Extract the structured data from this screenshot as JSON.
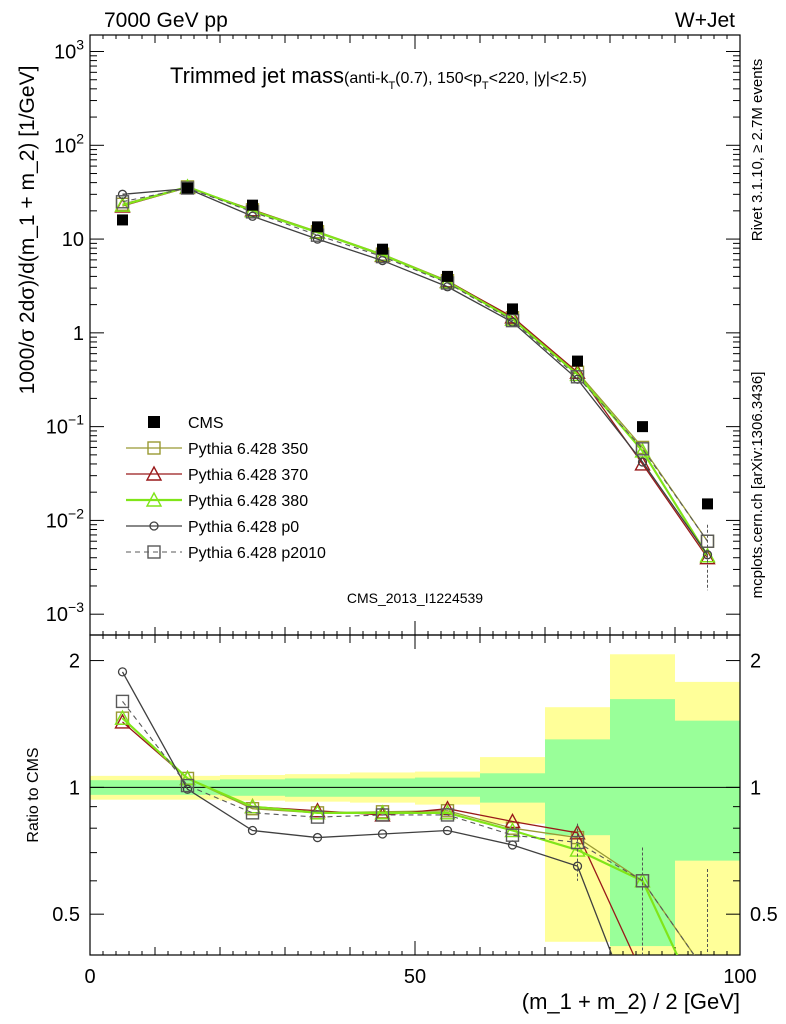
{
  "header": {
    "left": "7000 GeV pp",
    "right": "W+Jet"
  },
  "title": {
    "main": "Trimmed jet mass",
    "sub": "(anti-k",
    "sub_t": "T",
    "sub_mid": "(0.7), 150<p",
    "sub_t2": "T",
    "sub_end": "<220, |y|<2.5)"
  },
  "side_labels": {
    "rivet": "Rivet 3.1.10, ≥ 2.7M events",
    "mcplots": "mcplots.cern.ch [arXiv:1306.3436]"
  },
  "analysis_id": "CMS_2013_I1224539",
  "ylabel_top": "1000/σ 2dσ)/d(m_1 + m_2) [1/GeV]",
  "ylabel_bottom": "Ratio to CMS",
  "xlabel": "(m_1 + m_2) / 2 [GeV]",
  "top_ticks": [
    {
      "v": 1000,
      "base": "10",
      "exp": "3"
    },
    {
      "v": 100,
      "base": "10",
      "exp": "2"
    },
    {
      "v": 10,
      "base": "10",
      "exp": ""
    },
    {
      "v": 1,
      "base": "1",
      "exp": ""
    },
    {
      "v": 0.1,
      "base": "10",
      "exp": "−1"
    },
    {
      "v": 0.01,
      "base": "10",
      "exp": "−2"
    },
    {
      "v": 0.001,
      "base": "10",
      "exp": "−3"
    }
  ],
  "x_ticks": [
    "0",
    "50",
    "100"
  ],
  "ratio_ticks": [
    "0.5",
    "1",
    "2"
  ],
  "colors": {
    "s350": "#999933",
    "s370": "#99191a",
    "s380": "#80e519",
    "p0": "#404040",
    "p2010": "#595959",
    "band_inner": "#99ff99",
    "band_outer": "#ffff99"
  },
  "chart_data": {
    "type": "scatter",
    "xlim": [
      0,
      100
    ],
    "ylim_top": [
      0.0006,
      1500
    ],
    "ylim_ratio": [
      0.4,
      2.3
    ],
    "yscale": "log",
    "x": [
      5,
      15,
      25,
      35,
      45,
      55,
      65,
      75,
      85,
      95
    ],
    "data": {
      "name": "CMS",
      "values": [
        16,
        35,
        23,
        13.5,
        7.8,
        4.0,
        1.8,
        0.5,
        0.1,
        0.015
      ]
    },
    "ratio_band_inner": [
      [
        0.96,
        1.04
      ],
      [
        0.96,
        1.04
      ],
      [
        0.955,
        1.045
      ],
      [
        0.95,
        1.05
      ],
      [
        0.95,
        1.05
      ],
      [
        0.95,
        1.055
      ],
      [
        0.92,
        1.08
      ],
      [
        0.77,
        1.3
      ],
      [
        0.42,
        1.62
      ],
      [
        0.67,
        1.44
      ]
    ],
    "ratio_band_outer": [
      [
        0.935,
        1.065
      ],
      [
        0.935,
        1.065
      ],
      [
        0.93,
        1.07
      ],
      [
        0.925,
        1.075
      ],
      [
        0.92,
        1.085
      ],
      [
        0.91,
        1.09
      ],
      [
        0.82,
        1.18
      ],
      [
        0.43,
        1.55
      ],
      [
        0.3,
        2.07
      ],
      [
        0.3,
        1.78
      ]
    ],
    "series": [
      {
        "name": "Pythia 6.428 350",
        "marker": "square",
        "dash": false,
        "values": [
          23.5,
          36,
          20.5,
          12,
          6.9,
          3.6,
          1.45,
          0.38,
          0.06,
          0.006
        ],
        "ratio": [
          1.46,
          1.05,
          0.89,
          0.87,
          0.875,
          0.88,
          0.8,
          0.76,
          0.6,
          0.36
        ]
      },
      {
        "name": "Pythia 6.428 370",
        "marker": "triangle",
        "dash": false,
        "values": [
          22.5,
          35.5,
          20.5,
          11.8,
          6.7,
          3.55,
          1.48,
          0.38,
          0.04,
          0.004
        ],
        "ratio": [
          1.43,
          1.05,
          0.9,
          0.88,
          0.86,
          0.89,
          0.83,
          0.78,
          0.36,
          0.22
        ]
      },
      {
        "name": "Pythia 6.428 380",
        "marker": "triangle",
        "dash": false,
        "values": [
          23,
          36,
          20,
          11.8,
          6.8,
          3.5,
          1.4,
          0.36,
          0.055,
          0.0042
        ],
        "ratio": [
          1.46,
          1.05,
          0.9,
          0.87,
          0.87,
          0.87,
          0.79,
          0.71,
          0.6,
          0.28
        ]
      },
      {
        "name": "Pythia 6.428 p0",
        "marker": "circle",
        "dash": false,
        "values": [
          30,
          34.5,
          17.5,
          10,
          5.9,
          3.1,
          1.3,
          0.32,
          0.042,
          0.0043
        ],
        "ratio": [
          1.88,
          0.99,
          0.79,
          0.76,
          0.775,
          0.79,
          0.73,
          0.65,
          0.26,
          0.25
        ]
      },
      {
        "name": "Pythia 6.428 p2010",
        "marker": "square",
        "dash": true,
        "values": [
          25,
          35,
          19.5,
          11,
          6.5,
          3.4,
          1.35,
          0.34,
          0.058,
          0.006
        ],
        "ratio": [
          1.6,
          1.01,
          0.87,
          0.85,
          0.86,
          0.86,
          0.77,
          0.74,
          0.6,
          0.36
        ]
      }
    ]
  }
}
